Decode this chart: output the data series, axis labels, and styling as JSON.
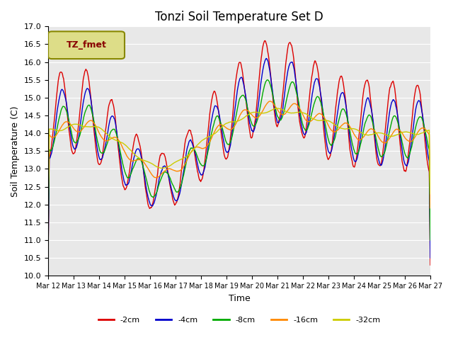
{
  "title": "Tonzi Soil Temperature Set D",
  "xlabel": "Time",
  "ylabel": "Soil Temperature (C)",
  "ylim": [
    10.0,
    17.0
  ],
  "yticks": [
    10.0,
    10.5,
    11.0,
    11.5,
    12.0,
    12.5,
    13.0,
    13.5,
    14.0,
    14.5,
    15.0,
    15.5,
    16.0,
    16.5,
    17.0
  ],
  "legend_label": "TZ_fmet",
  "series_labels": [
    "-2cm",
    "-4cm",
    "-8cm",
    "-16cm",
    "-32cm"
  ],
  "series_colors": [
    "#dd0000",
    "#0000cc",
    "#00aa00",
    "#ff8800",
    "#cccc00"
  ],
  "n_days": 15,
  "start_day": 12,
  "x_tick_labels": [
    "Mar 12",
    "Mar 13",
    "Mar 14",
    "Mar 15",
    "Mar 16",
    "Mar 17",
    "Mar 18",
    "Mar 19",
    "Mar 20",
    "Mar 21",
    "Mar 22",
    "Mar 23",
    "Mar 24",
    "Mar 25",
    "Mar 26",
    "Mar 27"
  ],
  "pts_per_day": 48,
  "seed": 42
}
